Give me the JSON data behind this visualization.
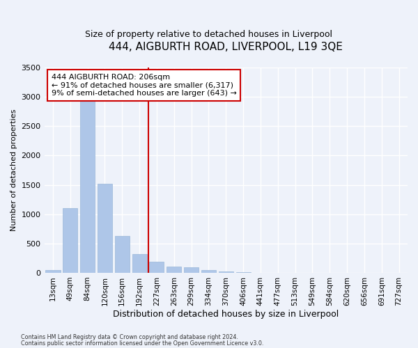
{
  "title": "444, AIGBURTH ROAD, LIVERPOOL, L19 3QE",
  "subtitle": "Size of property relative to detached houses in Liverpool",
  "xlabel": "Distribution of detached houses by size in Liverpool",
  "ylabel": "Number of detached properties",
  "bar_labels": [
    "13sqm",
    "49sqm",
    "84sqm",
    "120sqm",
    "156sqm",
    "192sqm",
    "227sqm",
    "263sqm",
    "299sqm",
    "334sqm",
    "370sqm",
    "406sqm",
    "441sqm",
    "477sqm",
    "513sqm",
    "549sqm",
    "584sqm",
    "620sqm",
    "656sqm",
    "691sqm",
    "727sqm"
  ],
  "bar_values": [
    50,
    1100,
    2950,
    1520,
    630,
    320,
    185,
    105,
    100,
    45,
    25,
    10,
    5,
    2,
    1,
    0,
    0,
    0,
    0,
    0,
    0
  ],
  "bar_color": "#aec6e8",
  "bar_edge_color": "#9ab8d8",
  "background_color": "#eef2fa",
  "grid_color": "#ffffff",
  "vline_x": 5.5,
  "vline_color": "#cc0000",
  "annotation_text": "444 AIGBURTH ROAD: 206sqm\n← 91% of detached houses are smaller (6,317)\n9% of semi-detached houses are larger (643) →",
  "annotation_box_facecolor": "#ffffff",
  "annotation_box_edgecolor": "#cc0000",
  "ylim": [
    0,
    3500
  ],
  "yticks": [
    0,
    500,
    1000,
    1500,
    2000,
    2500,
    3000,
    3500
  ],
  "title_fontsize": 11,
  "subtitle_fontsize": 9,
  "ylabel_fontsize": 8,
  "xlabel_fontsize": 9,
  "tick_fontsize": 8,
  "xtick_fontsize": 7.5,
  "footnote1": "Contains HM Land Registry data © Crown copyright and database right 2024.",
  "footnote2": "Contains public sector information licensed under the Open Government Licence v3.0."
}
